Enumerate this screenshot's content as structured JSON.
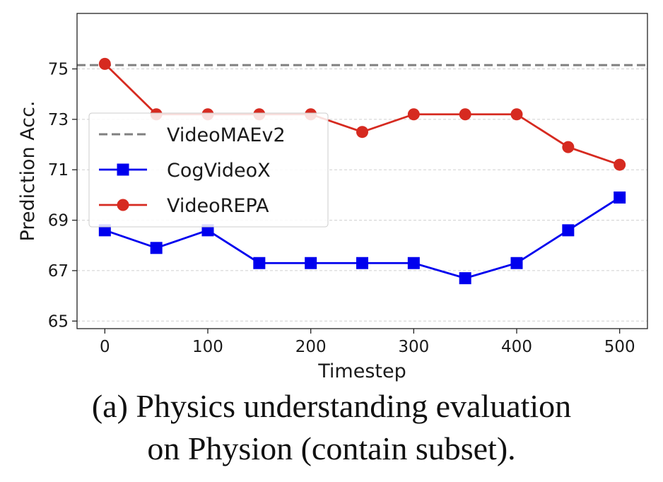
{
  "chart_data": {
    "type": "line",
    "xlabel": "Timestep",
    "ylabel": "Prediction Acc.",
    "xlim": [
      -27,
      527
    ],
    "ylim": [
      64.7,
      77.2
    ],
    "x_ticks": [
      0,
      100,
      200,
      300,
      400,
      500
    ],
    "y_ticks": [
      65,
      67,
      69,
      71,
      73,
      75
    ],
    "grid": "horizontal dashed",
    "legend_position": "left",
    "x": [
      0,
      50,
      100,
      150,
      200,
      250,
      300,
      350,
      400,
      450,
      500
    ],
    "series": [
      {
        "name": "CogVideoX",
        "color": "#0000ee",
        "marker": "square",
        "values": [
          68.6,
          67.9,
          68.6,
          67.3,
          67.3,
          67.3,
          67.3,
          66.7,
          67.3,
          68.6,
          69.9
        ]
      },
      {
        "name": "VideoREPA",
        "color": "#d62a20",
        "marker": "circle",
        "values": [
          75.2,
          73.2,
          73.2,
          73.2,
          73.2,
          72.5,
          73.2,
          73.2,
          73.2,
          71.9,
          71.2
        ]
      }
    ],
    "reference_lines": [
      {
        "name": "VideoMAEv2",
        "value": 75.15,
        "color": "#808080",
        "style": "dashed"
      }
    ]
  },
  "caption": {
    "line1": "(a) Physics understanding evaluation",
    "line2": "on Physion (contain subset)."
  }
}
